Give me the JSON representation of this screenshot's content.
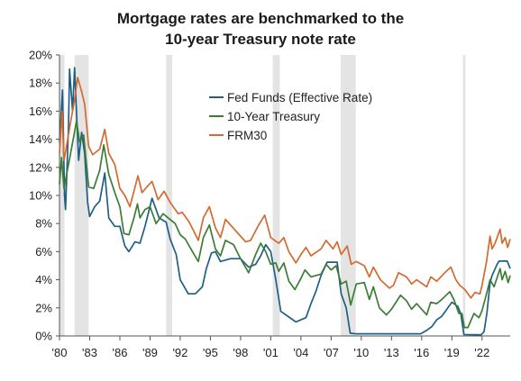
{
  "chart_data": {
    "type": "line",
    "title_lines": [
      "Mortgage rates are benchmarked to the",
      "10-year Treasury note rate"
    ],
    "xlabel": "",
    "ylabel": "",
    "xlim": [
      1980.0,
      2024.8
    ],
    "ylim": [
      0,
      20
    ],
    "x_ticks": [
      1980,
      1983,
      1986,
      1989,
      1992,
      1995,
      1998,
      2001,
      2004,
      2007,
      2010,
      2013,
      2016,
      2019,
      2022
    ],
    "x_tick_labels": [
      "'80",
      "'83",
      "'86",
      "'89",
      "'92",
      "'95",
      "'98",
      "'01",
      "'04",
      "'07",
      "'10",
      "'13",
      "'16",
      "'19",
      "'22"
    ],
    "y_ticks": [
      0,
      2,
      4,
      6,
      8,
      10,
      12,
      14,
      16,
      18,
      20
    ],
    "y_tick_labels": [
      "0%",
      "2%",
      "4%",
      "6%",
      "8%",
      "10%",
      "12%",
      "14%",
      "16%",
      "18%",
      "20%"
    ],
    "grid": false,
    "legend_position": "upper-center",
    "recessions": [
      [
        1980.0,
        1980.5
      ],
      [
        1981.5,
        1982.9
      ],
      [
        1990.6,
        1991.2
      ],
      [
        2001.2,
        2001.9
      ],
      [
        2007.95,
        2009.45
      ],
      [
        2020.1,
        2020.35
      ]
    ],
    "recession_color": "#e4e4e4",
    "series": [
      {
        "name": "Fed Funds (Effective Rate)",
        "color": "#1f5f86",
        "points": [
          [
            1980.0,
            13.8
          ],
          [
            1980.3,
            17.5
          ],
          [
            1980.5,
            10.0
          ],
          [
            1980.6,
            9.0
          ],
          [
            1980.9,
            15.0
          ],
          [
            1981.0,
            19.0
          ],
          [
            1981.3,
            16.0
          ],
          [
            1981.5,
            19.1
          ],
          [
            1981.9,
            12.5
          ],
          [
            1982.2,
            14.5
          ],
          [
            1982.5,
            13.0
          ],
          [
            1982.8,
            9.5
          ],
          [
            1983.0,
            8.5
          ],
          [
            1983.5,
            9.2
          ],
          [
            1984.0,
            9.6
          ],
          [
            1984.5,
            11.6
          ],
          [
            1984.9,
            8.4
          ],
          [
            1985.5,
            7.8
          ],
          [
            1986.0,
            7.8
          ],
          [
            1986.5,
            6.4
          ],
          [
            1986.9,
            6.0
          ],
          [
            1987.5,
            6.7
          ],
          [
            1988.0,
            6.6
          ],
          [
            1988.5,
            7.8
          ],
          [
            1989.2,
            9.8
          ],
          [
            1989.9,
            8.4
          ],
          [
            1990.6,
            8.1
          ],
          [
            1991.0,
            6.9
          ],
          [
            1991.6,
            5.8
          ],
          [
            1992.0,
            4.0
          ],
          [
            1992.8,
            3.0
          ],
          [
            1993.5,
            3.0
          ],
          [
            1994.2,
            3.5
          ],
          [
            1994.6,
            4.8
          ],
          [
            1995.1,
            5.9
          ],
          [
            1995.5,
            6.0
          ],
          [
            1996.0,
            5.3
          ],
          [
            1997.0,
            5.5
          ],
          [
            1998.0,
            5.5
          ],
          [
            1998.8,
            4.9
          ],
          [
            1999.5,
            5.1
          ],
          [
            2000.0,
            5.7
          ],
          [
            2000.5,
            6.5
          ],
          [
            2001.0,
            6.0
          ],
          [
            2001.5,
            4.0
          ],
          [
            2002.0,
            1.75
          ],
          [
            2003.0,
            1.25
          ],
          [
            2003.5,
            1.0
          ],
          [
            2004.5,
            1.3
          ],
          [
            2005.0,
            2.3
          ],
          [
            2005.5,
            3.2
          ],
          [
            2006.0,
            4.3
          ],
          [
            2006.6,
            5.25
          ],
          [
            2007.6,
            5.25
          ],
          [
            2008.0,
            3.0
          ],
          [
            2008.5,
            2.0
          ],
          [
            2008.9,
            0.2
          ],
          [
            2009.5,
            0.15
          ],
          [
            2012.0,
            0.15
          ],
          [
            2015.9,
            0.15
          ],
          [
            2016.5,
            0.4
          ],
          [
            2017.0,
            0.66
          ],
          [
            2017.5,
            1.15
          ],
          [
            2018.0,
            1.4
          ],
          [
            2018.5,
            1.9
          ],
          [
            2019.0,
            2.4
          ],
          [
            2019.6,
            2.1
          ],
          [
            2019.9,
            1.55
          ],
          [
            2020.2,
            0.1
          ],
          [
            2021.9,
            0.08
          ],
          [
            2022.2,
            0.3
          ],
          [
            2022.5,
            1.7
          ],
          [
            2022.8,
            3.8
          ],
          [
            2023.0,
            4.3
          ],
          [
            2023.5,
            5.1
          ],
          [
            2023.7,
            5.33
          ],
          [
            2024.5,
            5.33
          ],
          [
            2024.8,
            4.8
          ]
        ]
      },
      {
        "name": "10-Year Treasury",
        "color": "#3b7d35",
        "points": [
          [
            1980.0,
            10.8
          ],
          [
            1980.2,
            12.7
          ],
          [
            1980.45,
            10.5
          ],
          [
            1980.6,
            11.1
          ],
          [
            1981.0,
            12.6
          ],
          [
            1981.7,
            15.3
          ],
          [
            1982.0,
            13.8
          ],
          [
            1982.4,
            14.3
          ],
          [
            1982.9,
            10.6
          ],
          [
            1983.4,
            10.5
          ],
          [
            1984.0,
            11.8
          ],
          [
            1984.4,
            13.6
          ],
          [
            1984.9,
            11.5
          ],
          [
            1985.5,
            10.2
          ],
          [
            1986.0,
            9.2
          ],
          [
            1986.4,
            7.3
          ],
          [
            1986.9,
            7.2
          ],
          [
            1987.4,
            8.4
          ],
          [
            1987.75,
            9.4
          ],
          [
            1988.0,
            8.4
          ],
          [
            1988.5,
            9.0
          ],
          [
            1989.0,
            9.2
          ],
          [
            1989.6,
            8.0
          ],
          [
            1990.3,
            8.7
          ],
          [
            1990.8,
            8.4
          ],
          [
            1991.5,
            8.0
          ],
          [
            1992.0,
            7.2
          ],
          [
            1992.5,
            6.9
          ],
          [
            1993.3,
            5.9
          ],
          [
            1993.8,
            5.3
          ],
          [
            1994.3,
            7.0
          ],
          [
            1994.9,
            7.9
          ],
          [
            1995.5,
            6.2
          ],
          [
            1996.0,
            5.7
          ],
          [
            1996.5,
            6.8
          ],
          [
            1997.3,
            6.5
          ],
          [
            1998.0,
            5.5
          ],
          [
            1998.8,
            4.5
          ],
          [
            1999.5,
            5.8
          ],
          [
            2000.0,
            6.6
          ],
          [
            2000.5,
            6.0
          ],
          [
            2001.0,
            5.1
          ],
          [
            2001.5,
            5.2
          ],
          [
            2001.8,
            4.6
          ],
          [
            2002.3,
            5.2
          ],
          [
            2002.8,
            3.9
          ],
          [
            2003.4,
            3.3
          ],
          [
            2004.0,
            4.1
          ],
          [
            2004.4,
            4.7
          ],
          [
            2005.0,
            4.2
          ],
          [
            2006.0,
            4.4
          ],
          [
            2006.5,
            5.1
          ],
          [
            2007.0,
            4.7
          ],
          [
            2007.5,
            5.0
          ],
          [
            2008.0,
            3.7
          ],
          [
            2008.5,
            3.9
          ],
          [
            2008.95,
            2.2
          ],
          [
            2009.5,
            3.7
          ],
          [
            2010.3,
            3.8
          ],
          [
            2010.8,
            2.6
          ],
          [
            2011.2,
            3.5
          ],
          [
            2011.8,
            2.0
          ],
          [
            2012.5,
            1.5
          ],
          [
            2013.0,
            1.9
          ],
          [
            2013.9,
            2.9
          ],
          [
            2014.5,
            2.5
          ],
          [
            2015.0,
            1.9
          ],
          [
            2015.5,
            2.3
          ],
          [
            2016.5,
            1.5
          ],
          [
            2016.9,
            2.4
          ],
          [
            2017.5,
            2.3
          ],
          [
            2018.0,
            2.6
          ],
          [
            2018.8,
            3.15
          ],
          [
            2019.2,
            2.6
          ],
          [
            2019.7,
            1.6
          ],
          [
            2020.0,
            1.6
          ],
          [
            2020.25,
            0.6
          ],
          [
            2020.6,
            0.6
          ],
          [
            2021.2,
            1.6
          ],
          [
            2021.7,
            1.3
          ],
          [
            2022.0,
            1.8
          ],
          [
            2022.45,
            3.0
          ],
          [
            2022.8,
            4.0
          ],
          [
            2023.2,
            3.5
          ],
          [
            2023.8,
            4.8
          ],
          [
            2024.0,
            4.0
          ],
          [
            2024.3,
            4.6
          ],
          [
            2024.6,
            3.8
          ],
          [
            2024.8,
            4.3
          ]
        ]
      },
      {
        "name": "FRM30",
        "color": "#d36a2f",
        "points": [
          [
            1980.0,
            13.0
          ],
          [
            1980.25,
            16.0
          ],
          [
            1980.45,
            12.5
          ],
          [
            1980.7,
            13.5
          ],
          [
            1981.0,
            14.8
          ],
          [
            1981.5,
            16.8
          ],
          [
            1981.8,
            18.4
          ],
          [
            1982.2,
            17.4
          ],
          [
            1982.5,
            16.5
          ],
          [
            1982.9,
            13.5
          ],
          [
            1983.3,
            12.9
          ],
          [
            1984.0,
            13.3
          ],
          [
            1984.5,
            14.7
          ],
          [
            1984.9,
            13.0
          ],
          [
            1985.5,
            12.2
          ],
          [
            1986.0,
            10.5
          ],
          [
            1986.5,
            10.0
          ],
          [
            1987.0,
            9.2
          ],
          [
            1987.8,
            11.4
          ],
          [
            1988.2,
            10.2
          ],
          [
            1988.8,
            10.7
          ],
          [
            1989.2,
            11.0
          ],
          [
            1989.8,
            9.7
          ],
          [
            1990.4,
            10.3
          ],
          [
            1991.0,
            9.5
          ],
          [
            1991.8,
            8.7
          ],
          [
            1992.2,
            8.8
          ],
          [
            1992.9,
            8.1
          ],
          [
            1993.8,
            6.8
          ],
          [
            1994.3,
            8.4
          ],
          [
            1994.9,
            9.2
          ],
          [
            1995.5,
            7.7
          ],
          [
            1996.0,
            7.0
          ],
          [
            1996.5,
            8.3
          ],
          [
            1997.5,
            7.5
          ],
          [
            1998.5,
            6.7
          ],
          [
            1999.0,
            6.8
          ],
          [
            1999.8,
            7.9
          ],
          [
            2000.4,
            8.6
          ],
          [
            2001.0,
            7.0
          ],
          [
            2001.8,
            6.6
          ],
          [
            2002.3,
            7.0
          ],
          [
            2002.8,
            6.0
          ],
          [
            2003.5,
            5.2
          ],
          [
            2004.0,
            5.8
          ],
          [
            2004.5,
            6.3
          ],
          [
            2005.0,
            5.7
          ],
          [
            2006.0,
            6.2
          ],
          [
            2006.5,
            6.8
          ],
          [
            2007.2,
            6.2
          ],
          [
            2007.6,
            6.7
          ],
          [
            2008.0,
            5.8
          ],
          [
            2008.6,
            6.4
          ],
          [
            2009.0,
            5.1
          ],
          [
            2009.5,
            5.3
          ],
          [
            2010.3,
            5.0
          ],
          [
            2010.8,
            4.2
          ],
          [
            2011.2,
            4.9
          ],
          [
            2011.9,
            4.0
          ],
          [
            2012.8,
            3.4
          ],
          [
            2013.2,
            3.6
          ],
          [
            2013.7,
            4.5
          ],
          [
            2014.5,
            4.2
          ],
          [
            2015.0,
            3.7
          ],
          [
            2015.5,
            4.0
          ],
          [
            2016.5,
            3.5
          ],
          [
            2016.9,
            4.2
          ],
          [
            2017.5,
            3.9
          ],
          [
            2018.3,
            4.5
          ],
          [
            2018.9,
            4.9
          ],
          [
            2019.4,
            4.0
          ],
          [
            2019.8,
            3.6
          ],
          [
            2020.3,
            3.3
          ],
          [
            2020.9,
            2.7
          ],
          [
            2021.3,
            3.1
          ],
          [
            2021.8,
            3.0
          ],
          [
            2022.0,
            3.6
          ],
          [
            2022.45,
            5.3
          ],
          [
            2022.8,
            7.1
          ],
          [
            2023.0,
            6.2
          ],
          [
            2023.3,
            6.6
          ],
          [
            2023.8,
            7.6
          ],
          [
            2024.0,
            6.6
          ],
          [
            2024.3,
            7.0
          ],
          [
            2024.55,
            6.3
          ],
          [
            2024.8,
            6.9
          ]
        ]
      }
    ]
  }
}
